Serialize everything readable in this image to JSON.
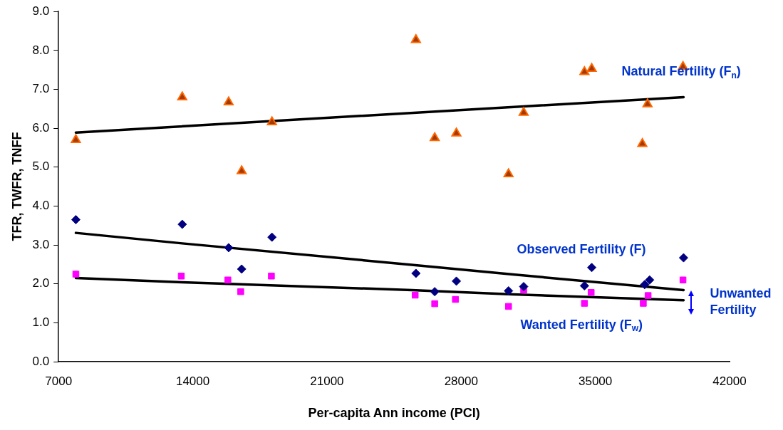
{
  "chart_data": {
    "type": "scatter",
    "xlabel": "Per-capita Ann income (PCI)",
    "ylabel": "TFR, TWFR, TNFF",
    "xlim": [
      7000,
      42000
    ],
    "xticks": [
      7000,
      14000,
      21000,
      28000,
      35000,
      42000
    ],
    "ylim": [
      0,
      9
    ],
    "yticks": [
      {
        "value": 0,
        "label": "0.0"
      },
      {
        "value": 1,
        "label": "1.0"
      },
      {
        "value": 2,
        "label": "2.0"
      },
      {
        "value": 3,
        "label": "3.0"
      },
      {
        "value": 4,
        "label": "4.0"
      },
      {
        "value": 5,
        "label": "5.0"
      },
      {
        "value": 6,
        "label": "6.0"
      },
      {
        "value": 7,
        "label": "7.0"
      },
      {
        "value": 8,
        "label": "8.0"
      },
      {
        "value": 9,
        "label": "9.0"
      }
    ],
    "grid": false,
    "legend": false,
    "series": [
      {
        "type": "scatter",
        "marker": "triangle",
        "color": "#ff6600",
        "x": [
          7900,
          13450,
          15870,
          16550,
          18130,
          25640,
          26620,
          27750,
          30470,
          31260,
          34430,
          34810,
          37450,
          37720,
          39570
        ],
        "values": [
          5.7,
          6.8,
          6.67,
          4.9,
          6.16,
          8.27,
          5.75,
          5.87,
          4.82,
          6.4,
          7.45,
          7.53,
          5.6,
          6.62,
          7.58
        ]
      },
      {
        "type": "scatter",
        "marker": "diamond",
        "color": "#000080",
        "x": [
          7900,
          13450,
          15870,
          16550,
          18130,
          25640,
          26620,
          27750,
          30470,
          31260,
          34430,
          34810,
          37570,
          37830,
          39600
        ],
        "values": [
          3.65,
          3.53,
          2.93,
          2.38,
          3.2,
          2.27,
          1.8,
          2.07,
          1.82,
          1.93,
          1.95,
          2.42,
          1.98,
          2.1,
          2.67
        ]
      },
      {
        "type": "scatter",
        "marker": "square",
        "color": "#ff00ff",
        "x": [
          7900,
          13400,
          15830,
          16500,
          18100,
          25600,
          26620,
          27700,
          30470,
          31260,
          34430,
          34780,
          37500,
          37750,
          39570
        ],
        "values": [
          2.25,
          2.2,
          2.1,
          1.8,
          2.2,
          1.71,
          1.49,
          1.6,
          1.42,
          1.84,
          1.5,
          1.78,
          1.5,
          1.7,
          2.1
        ]
      },
      {
        "type": "line",
        "name": "Natural Fertility (F$_{n}$)",
        "marker": "none",
        "color": "#000000",
        "x": [
          7900,
          39600
        ],
        "values": [
          5.89,
          6.8
        ]
      },
      {
        "type": "line",
        "name": "Observed Fertility (F)",
        "marker": "none",
        "color": "#000000",
        "x": [
          7900,
          13450,
          25420,
          30700,
          39600
        ],
        "values": [
          3.31,
          3.04,
          2.49,
          2.24,
          1.84
        ]
      },
      {
        "type": "line",
        "name": "Wanted Fertility (F$_{w}$)",
        "marker": "none",
        "color": "#000000",
        "x": [
          7900,
          13450,
          25420,
          30700,
          39600
        ],
        "values": [
          2.15,
          2.04,
          1.84,
          1.73,
          1.58
        ]
      }
    ],
    "annotations": [
      "Unwanted\nFertility"
    ]
  }
}
